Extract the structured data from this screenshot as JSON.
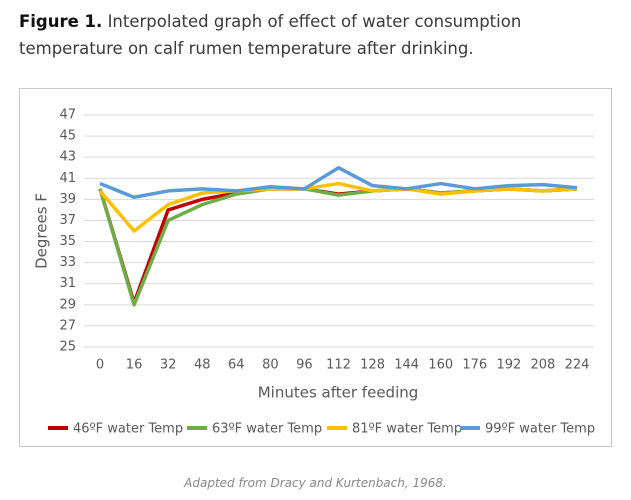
{
  "caption": {
    "label": "Figure 1.",
    "text": "Interpolated graph of effect of water consumption temperature on calf rumen temperature after drinking."
  },
  "chart_data": {
    "type": "line",
    "x_label": "Minutes after feeding",
    "y_label": "Degrees F",
    "x": [
      0,
      16,
      32,
      48,
      64,
      80,
      96,
      112,
      128,
      144,
      160,
      176,
      192,
      208,
      224
    ],
    "xlim": [
      0,
      224
    ],
    "xticks": [
      0,
      16,
      32,
      48,
      64,
      80,
      96,
      112,
      128,
      144,
      160,
      176,
      192,
      208,
      224
    ],
    "ylim": [
      25,
      47
    ],
    "yticks": [
      25,
      27,
      29,
      31,
      33,
      35,
      37,
      39,
      41,
      43,
      45,
      47
    ],
    "grid": true,
    "legend": "bottom",
    "series": [
      {
        "name": "46ºF water Temp",
        "color": "#c00000",
        "values": [
          40,
          29.2,
          38,
          39,
          39.6,
          40,
          40,
          39.5,
          39.8,
          40,
          39.6,
          39.8,
          40,
          39.8,
          40
        ]
      },
      {
        "name": "63ºF water Temp",
        "color": "#70ad47",
        "values": [
          40,
          29,
          37,
          38.5,
          39.5,
          40,
          40,
          39.4,
          39.8,
          40,
          39.6,
          39.8,
          40,
          39.8,
          40
        ]
      },
      {
        "name": "81ºF water Temp",
        "color": "#ffc000",
        "values": [
          39.8,
          36,
          38.5,
          39.6,
          39.8,
          40,
          40,
          40.5,
          39.8,
          40,
          39.5,
          39.8,
          40,
          39.8,
          40
        ]
      },
      {
        "name": "99ºF water Temp",
        "color": "#5b9bd5",
        "values": [
          40.5,
          39.2,
          39.8,
          40,
          39.8,
          40.2,
          40,
          42,
          40.3,
          40,
          40.5,
          40,
          40.3,
          40.4,
          40.1
        ]
      }
    ]
  },
  "source": "Adapted from Dracy and Kurtenbach, 1968."
}
